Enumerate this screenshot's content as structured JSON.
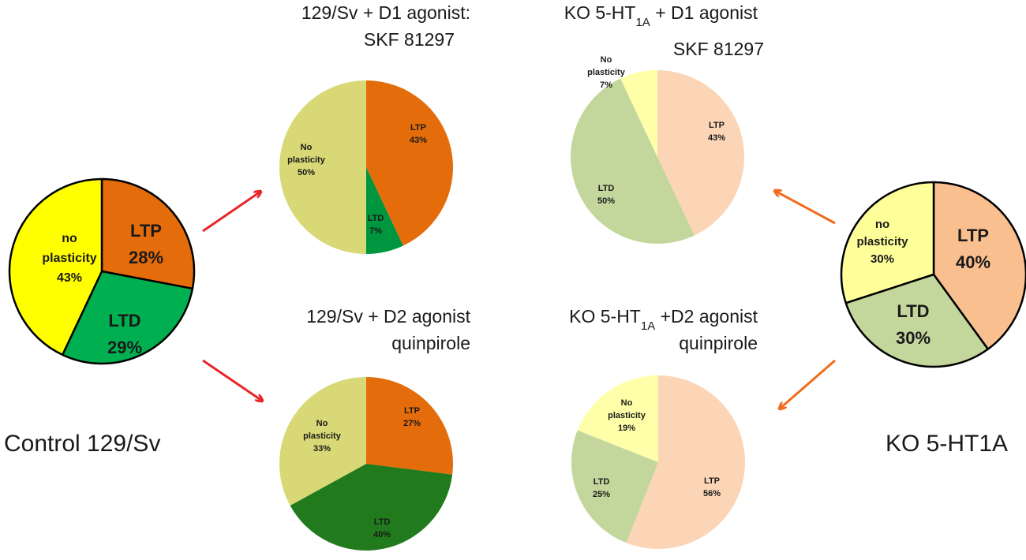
{
  "labels": {
    "control": "Control 129/Sv",
    "ko": "KO 5-HT1A"
  },
  "chart_data": [
    {
      "type": "pie",
      "title": "",
      "slices": [
        {
          "label": "LTP",
          "value": 28,
          "value_label": "28%",
          "color": "#e46c0a"
        },
        {
          "label": "LTD",
          "value": 29,
          "value_label": "29%",
          "color": "#00b050"
        },
        {
          "label": "no plasticity",
          "value": 43,
          "value_label": "43%",
          "color": "#ffff00"
        }
      ]
    },
    {
      "type": "pie",
      "title_lines": [
        "129/Sv + D1 agonist:",
        "SKF 81297"
      ],
      "slices": [
        {
          "label": "LTP",
          "value": 43,
          "value_label": "43%",
          "color": "#e46c0a"
        },
        {
          "label": "LTD",
          "value": 7,
          "value_label": "7%",
          "color": "#00953f"
        },
        {
          "label": "No plasticity",
          "value": 50,
          "value_label": "50%",
          "color": "#d8d876"
        }
      ]
    },
    {
      "type": "pie",
      "title_lines": [
        "129/Sv + D2 agonist",
        "quinpirole"
      ],
      "slices": [
        {
          "label": "LTP",
          "value": 27,
          "value_label": "27%",
          "color": "#e46c0a"
        },
        {
          "label": "LTD",
          "value": 40,
          "value_label": "40%",
          "color": "#217a1b"
        },
        {
          "label": "No plasticity",
          "value": 33,
          "value_label": "33%",
          "color": "#d8d876"
        }
      ]
    },
    {
      "type": "pie",
      "title_lines": [
        "KO 5-HT1A + D1 agonist",
        "SKF 81297"
      ],
      "slices": [
        {
          "label": "LTP",
          "value": 43,
          "value_label": "43%",
          "color": "#fbd5b6"
        },
        {
          "label": "LTD",
          "value": 50,
          "value_label": "50%",
          "color": "#c3d69b"
        },
        {
          "label": "No plasticity",
          "value": 7,
          "value_label": "7%",
          "color": "#ffffaa"
        }
      ]
    },
    {
      "type": "pie",
      "title_lines": [
        "KO 5-HT1A +D2 agonist",
        "quinpirole"
      ],
      "slices": [
        {
          "label": "LTP",
          "value": 56,
          "value_label": "56%",
          "color": "#fbd5b6"
        },
        {
          "label": "LTD",
          "value": 25,
          "value_label": "25%",
          "color": "#c3d69b"
        },
        {
          "label": "No plasticity",
          "value": 19,
          "value_label": "19%",
          "color": "#ffffaa"
        }
      ]
    },
    {
      "type": "pie",
      "title": "",
      "slices": [
        {
          "label": "LTP",
          "value": 40,
          "value_label": "40%",
          "color": "#f9bf8f"
        },
        {
          "label": "LTD",
          "value": 30,
          "value_label": "30%",
          "color": "#c3d69b"
        },
        {
          "label": "no plasticity",
          "value": 30,
          "value_label": "30%",
          "color": "#ffff9a"
        }
      ]
    }
  ],
  "arrow_colors": {
    "control": "#e8262a",
    "ko": "#f26b1d"
  }
}
